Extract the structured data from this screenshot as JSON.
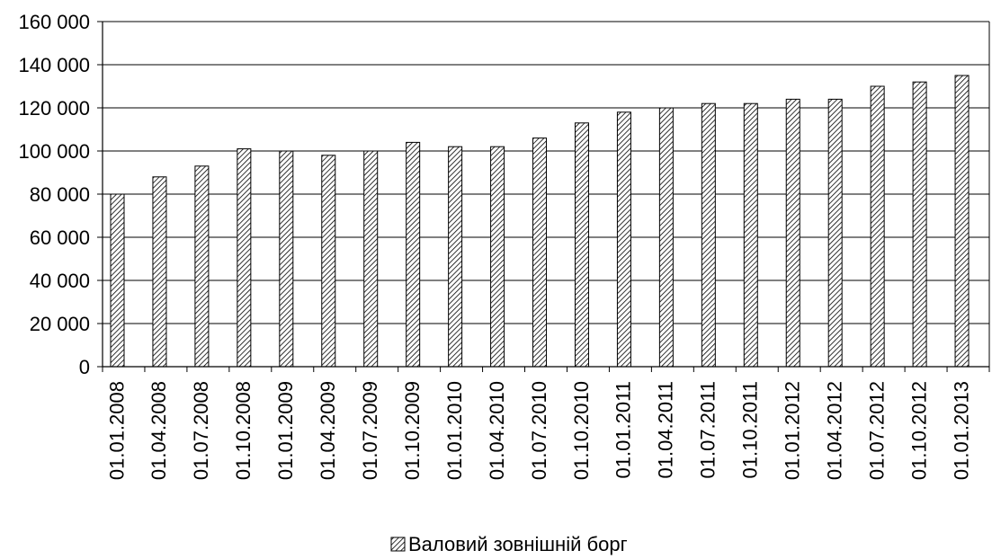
{
  "chart_data": {
    "type": "bar",
    "categories": [
      "01.01.2008",
      "01.04.2008",
      "01.07.2008",
      "01.10.2008",
      "01.01.2009",
      "01.04.2009",
      "01.07.2009",
      "01.10.2009",
      "01.01.2010",
      "01.04.2010",
      "01.07.2010",
      "01.10.2010",
      "01.01.2011",
      "01.04.2011",
      "01.07.2011",
      "01.10.2011",
      "01.01.2012",
      "01.04.2012",
      "01.07.2012",
      "01.10.2012",
      "01.01.2013"
    ],
    "series": [
      {
        "name": "Валовий зовнішній борг",
        "values": [
          80000,
          88000,
          93000,
          101000,
          100000,
          98000,
          100000,
          104000,
          102000,
          102000,
          106000,
          113000,
          118000,
          120000,
          122000,
          122000,
          124000,
          124000,
          130000,
          132000,
          135000
        ]
      }
    ],
    "ylim": [
      0,
      160000
    ],
    "yticks": [
      0,
      20000,
      40000,
      60000,
      80000,
      100000,
      120000,
      140000,
      160000
    ],
    "ytick_labels": [
      "0",
      "20 000",
      "40 000",
      "60 000",
      "80 000",
      "100 000",
      "120 000",
      "140 000",
      "160 000"
    ],
    "grid": true,
    "legend_position": "bottom",
    "bar_pattern": "diagonal-hatch",
    "colors": {
      "bar_stroke": "#000000",
      "hatch": "#000000",
      "background": "#ffffff",
      "grid": "#000000"
    }
  },
  "legend": {
    "label": "Валовий зовнішній борг"
  }
}
